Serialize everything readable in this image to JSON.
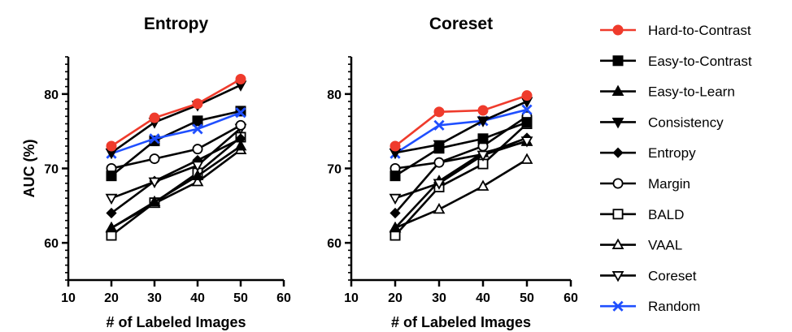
{
  "chart_data": [
    {
      "type": "line",
      "title": "Entropy",
      "xlabel": "# of Labeled Images",
      "ylabel": "AUC (%)",
      "xlim": [
        10,
        60
      ],
      "ylim": [
        55,
        85
      ],
      "x_ticks": [
        10,
        20,
        30,
        40,
        50,
        60
      ],
      "y_ticks": [
        60,
        70,
        80
      ],
      "x": [
        20,
        30,
        40,
        50
      ],
      "series": [
        {
          "name": "Hard-to-Contrast",
          "values": [
            73.0,
            76.8,
            78.7,
            82.0
          ]
        },
        {
          "name": "Easy-to-Contrast",
          "values": [
            69.0,
            73.7,
            76.4,
            77.7
          ]
        },
        {
          "name": "Easy-to-Learn",
          "values": [
            62.0,
            65.5,
            69.0,
            73.0
          ]
        },
        {
          "name": "Consistency",
          "values": [
            72.1,
            76.2,
            78.5,
            81.2
          ]
        },
        {
          "name": "Entropy",
          "values": [
            64.0,
            68.3,
            71.1,
            74.0
          ]
        },
        {
          "name": "Margin",
          "values": [
            70.0,
            71.3,
            72.6,
            75.8
          ]
        },
        {
          "name": "BALD",
          "values": [
            61.0,
            65.4,
            69.4,
            74.2
          ]
        },
        {
          "name": "VAAL",
          "values": [
            62.0,
            65.3,
            68.2,
            72.5
          ]
        },
        {
          "name": "Coreset",
          "values": [
            66.0,
            68.2,
            70.4,
            75.4
          ]
        },
        {
          "name": "Random",
          "values": [
            72.0,
            74.0,
            75.3,
            77.5
          ]
        }
      ]
    },
    {
      "type": "line",
      "title": "Coreset",
      "xlabel": "# of Labeled Images",
      "ylabel": "",
      "xlim": [
        10,
        60
      ],
      "ylim": [
        55,
        85
      ],
      "x_ticks": [
        10,
        20,
        30,
        40,
        50,
        60
      ],
      "y_ticks": [
        60,
        70,
        80
      ],
      "x": [
        20,
        30,
        40,
        50
      ],
      "series": [
        {
          "name": "Hard-to-Contrast",
          "values": [
            73.0,
            77.6,
            77.8,
            79.8
          ]
        },
        {
          "name": "Easy-to-Contrast",
          "values": [
            69.0,
            72.7,
            74.0,
            76.2
          ]
        },
        {
          "name": "Easy-to-Learn",
          "values": [
            62.0,
            68.3,
            72.1,
            73.6
          ]
        },
        {
          "name": "Consistency",
          "values": [
            72.1,
            73.2,
            76.4,
            79.0
          ]
        },
        {
          "name": "Entropy",
          "values": [
            64.0,
            70.8,
            71.9,
            74.1
          ]
        },
        {
          "name": "Margin",
          "values": [
            70.0,
            70.8,
            73.0,
            77.0
          ]
        },
        {
          "name": "BALD",
          "values": [
            61.0,
            67.5,
            70.6,
            76.0
          ]
        },
        {
          "name": "VAAL",
          "values": [
            62.0,
            64.5,
            67.6,
            71.2
          ]
        },
        {
          "name": "Coreset",
          "values": [
            66.0,
            68.0,
            71.8,
            73.7
          ]
        },
        {
          "name": "Random",
          "values": [
            72.0,
            75.8,
            76.4,
            77.9
          ]
        }
      ]
    }
  ],
  "legend": {
    "placement": "right",
    "items": [
      {
        "label": "Hard-to-Contrast",
        "marker": "filled-circle",
        "color": "#ef3b2c"
      },
      {
        "label": "Easy-to-Contrast",
        "marker": "filled-square",
        "color": "#000000"
      },
      {
        "label": "Easy-to-Learn",
        "marker": "filled-triangle-up",
        "color": "#000000"
      },
      {
        "label": "Consistency",
        "marker": "filled-triangle-down",
        "color": "#000000"
      },
      {
        "label": "Entropy",
        "marker": "filled-diamond",
        "color": "#000000"
      },
      {
        "label": "Margin",
        "marker": "open-circle",
        "color": "#000000"
      },
      {
        "label": "BALD",
        "marker": "open-square",
        "color": "#000000"
      },
      {
        "label": "VAAL",
        "marker": "open-triangle-up",
        "color": "#000000"
      },
      {
        "label": "Coreset",
        "marker": "open-triangle-down",
        "color": "#000000"
      },
      {
        "label": "Random",
        "marker": "x-cross",
        "color": "#1f4fff"
      }
    ]
  }
}
